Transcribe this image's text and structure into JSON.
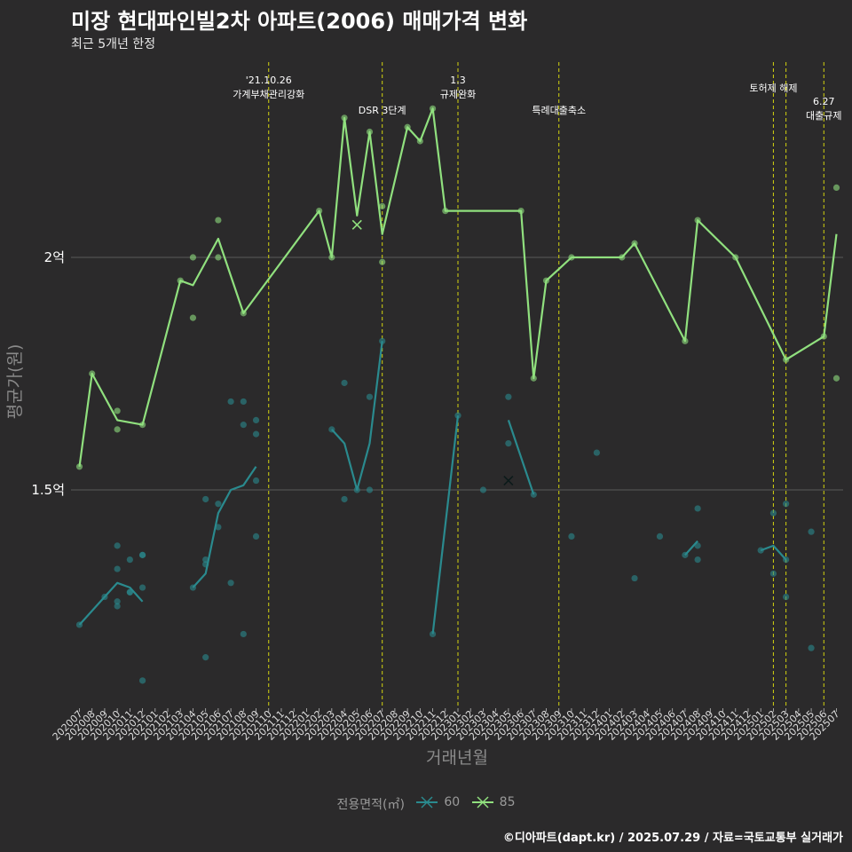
{
  "title": "미장 현대파인빌2차 아파트(2006) 매매가격 변화",
  "subtitle": "최근 5개년 한정",
  "caption": "©디아파트(dapt.kr) / 2025.07.29 / 자료=국토교통부 실거래가",
  "legend": {
    "title": "전용면적(㎡)",
    "items": [
      "60",
      "85"
    ]
  },
  "chart_data": {
    "type": "line",
    "xlabel": "거래년월",
    "ylabel": "평균가(원)",
    "categories": [
      "202007",
      "202008",
      "202009",
      "202010",
      "202011",
      "202012",
      "202101",
      "202102",
      "202103",
      "202104",
      "202105",
      "202106",
      "202107",
      "202108",
      "202109",
      "202110",
      "202111",
      "202112",
      "202201",
      "202202",
      "202203",
      "202204",
      "202205",
      "202206",
      "202207",
      "202208",
      "202209",
      "202210",
      "202211",
      "202212",
      "202301",
      "202302",
      "202303",
      "202304",
      "202305",
      "202306",
      "202307",
      "202308",
      "202309",
      "202310",
      "202311",
      "202312",
      "202401",
      "202402",
      "202403",
      "202404",
      "202405",
      "202406",
      "202407",
      "202408",
      "202409",
      "202410",
      "202411",
      "202412",
      "202501",
      "202502",
      "202503",
      "202504",
      "202505",
      "202506",
      "202507"
    ],
    "ylim": [
      1.05,
      2.52
    ],
    "yticks": [
      {
        "value": 1.5,
        "label": "1.5억"
      },
      {
        "value": 2.0,
        "label": "2억"
      }
    ],
    "unit": "억원",
    "series": [
      {
        "name": "60",
        "color": "#2a8a8e",
        "line": [
          [
            [
              "202007",
              1.21
            ],
            [
              "202009",
              1.27
            ],
            [
              "202010",
              1.3
            ],
            [
              "202011",
              1.29
            ],
            [
              "202012",
              1.26
            ]
          ],
          [
            [
              "202104",
              1.29
            ],
            [
              "202105",
              1.32
            ],
            [
              "202106",
              1.45
            ],
            [
              "202107",
              1.5
            ],
            [
              "202108",
              1.51
            ],
            [
              "202109",
              1.55
            ]
          ],
          [
            [
              "202203",
              1.63
            ],
            [
              "202204",
              1.6
            ],
            [
              "202205",
              1.5
            ],
            [
              "202206",
              1.6
            ],
            [
              "202207",
              1.82
            ]
          ],
          [
            [
              "202211",
              1.19
            ],
            [
              "202301",
              1.66
            ]
          ],
          [
            [
              "202305",
              1.65
            ],
            [
              "202307",
              1.49
            ]
          ],
          [
            [
              "202407",
              1.36
            ],
            [
              "202408",
              1.39
            ]
          ],
          [
            [
              "202501",
              1.37
            ],
            [
              "202502",
              1.38
            ],
            [
              "202503",
              1.35
            ]
          ]
        ],
        "points": [
          [
            "202007",
            1.21
          ],
          [
            "202009",
            1.27
          ],
          [
            "202010",
            1.38
          ],
          [
            "202010",
            1.33
          ],
          [
            "202010",
            1.25
          ],
          [
            "202010",
            1.26
          ],
          [
            "202011",
            1.35
          ],
          [
            "202011",
            1.28
          ],
          [
            "202011",
            1.28
          ],
          [
            "202012",
            1.36
          ],
          [
            "202012",
            1.36
          ],
          [
            "202012",
            1.29
          ],
          [
            "202012",
            1.09
          ],
          [
            "202104",
            1.29
          ],
          [
            "202105",
            1.35
          ],
          [
            "202105",
            1.34
          ],
          [
            "202105",
            1.14
          ],
          [
            "202105",
            1.48
          ],
          [
            "202106",
            1.42
          ],
          [
            "202106",
            1.47
          ],
          [
            "202107",
            1.3
          ],
          [
            "202107",
            1.69
          ],
          [
            "202108",
            1.69
          ],
          [
            "202108",
            1.64
          ],
          [
            "202108",
            1.19
          ],
          [
            "202109",
            1.65
          ],
          [
            "202109",
            1.62
          ],
          [
            "202109",
            1.52
          ],
          [
            "202109",
            1.4
          ],
          [
            "202203",
            1.63
          ],
          [
            "202204",
            1.73
          ],
          [
            "202204",
            1.48
          ],
          [
            "202205",
            1.5
          ],
          [
            "202206",
            1.7
          ],
          [
            "202206",
            1.5
          ],
          [
            "202207",
            1.82
          ],
          [
            "202211",
            1.19
          ],
          [
            "202301",
            1.66
          ],
          [
            "202303",
            1.5
          ],
          [
            "202305",
            1.7
          ],
          [
            "202305",
            1.6
          ],
          [
            "202307",
            1.49
          ],
          [
            "202310",
            1.4
          ],
          [
            "202312",
            1.58
          ],
          [
            "202403",
            1.31
          ],
          [
            "202405",
            1.4
          ],
          [
            "202407",
            1.36
          ],
          [
            "202408",
            1.46
          ],
          [
            "202408",
            1.38
          ],
          [
            "202408",
            1.35
          ],
          [
            "202501",
            1.37
          ],
          [
            "202502",
            1.45
          ],
          [
            "202502",
            1.32
          ],
          [
            "202503",
            1.47
          ],
          [
            "202503",
            1.35
          ],
          [
            "202503",
            1.27
          ],
          [
            "202505",
            1.41
          ],
          [
            "202505",
            1.16
          ]
        ],
        "cross": [
          "202305",
          1.52
        ]
      },
      {
        "name": "85",
        "color": "#90e07e",
        "line": [
          [
            [
              "202007",
              1.55
            ],
            [
              "202008",
              1.75
            ],
            [
              "202010",
              1.65
            ],
            [
              "202012",
              1.64
            ],
            [
              "202103",
              1.95
            ],
            [
              "202104",
              1.94
            ],
            [
              "202106",
              2.04
            ],
            [
              "202108",
              1.88
            ],
            [
              "202202",
              2.1
            ],
            [
              "202203",
              2.0
            ],
            [
              "202204",
              2.3
            ],
            [
              "202205",
              2.09
            ],
            [
              "202206",
              2.27
            ],
            [
              "202207",
              2.05
            ],
            [
              "202209",
              2.28
            ],
            [
              "202210",
              2.25
            ],
            [
              "202211",
              2.32
            ],
            [
              "202212",
              2.1
            ],
            [
              "202306",
              2.1
            ],
            [
              "202307",
              1.74
            ],
            [
              "202308",
              1.95
            ],
            [
              "202310",
              2.0
            ],
            [
              "202402",
              2.0
            ],
            [
              "202403",
              2.03
            ],
            [
              "202407",
              1.82
            ],
            [
              "202408",
              2.08
            ],
            [
              "202411",
              2.0
            ],
            [
              "202503",
              1.78
            ],
            [
              "202506",
              1.83
            ],
            [
              "202507",
              2.05
            ]
          ]
        ],
        "points": [
          [
            "202007",
            1.55
          ],
          [
            "202008",
            1.75
          ],
          [
            "202010",
            1.67
          ],
          [
            "202010",
            1.63
          ],
          [
            "202012",
            1.64
          ],
          [
            "202103",
            1.95
          ],
          [
            "202104",
            2.0
          ],
          [
            "202104",
            1.87
          ],
          [
            "202106",
            2.08
          ],
          [
            "202106",
            2.0
          ],
          [
            "202108",
            1.88
          ],
          [
            "202202",
            2.1
          ],
          [
            "202203",
            2.0
          ],
          [
            "202204",
            2.3
          ],
          [
            "202206",
            2.27
          ],
          [
            "202207",
            2.11
          ],
          [
            "202207",
            1.99
          ],
          [
            "202209",
            2.28
          ],
          [
            "202210",
            2.25
          ],
          [
            "202211",
            2.32
          ],
          [
            "202212",
            2.1
          ],
          [
            "202306",
            2.1
          ],
          [
            "202307",
            1.74
          ],
          [
            "202308",
            1.95
          ],
          [
            "202310",
            2.0
          ],
          [
            "202402",
            2.0
          ],
          [
            "202403",
            2.03
          ],
          [
            "202407",
            1.82
          ],
          [
            "202408",
            2.08
          ],
          [
            "202411",
            2.0
          ],
          [
            "202503",
            1.78
          ],
          [
            "202506",
            1.83
          ],
          [
            "202507",
            2.15
          ],
          [
            "202507",
            1.74
          ]
        ],
        "cross": [
          "202205",
          2.07
        ]
      }
    ],
    "events": [
      {
        "month": "202110",
        "label": "'21.10.26\n가계부채관리강화",
        "level": 1
      },
      {
        "month": "202207",
        "label": "DSR 3단계",
        "level": 2
      },
      {
        "month": "202301",
        "label": "1.3\n규제완화",
        "level": 1
      },
      {
        "month": "202309",
        "label": "특례대출축소",
        "level": 2
      },
      {
        "month": "202502",
        "label": "토허제 해제",
        "level": 1
      },
      {
        "month": "202503",
        "label": "",
        "level": 1
      },
      {
        "month": "202506",
        "label": "6.27\n대출규제",
        "level": 3
      }
    ]
  }
}
